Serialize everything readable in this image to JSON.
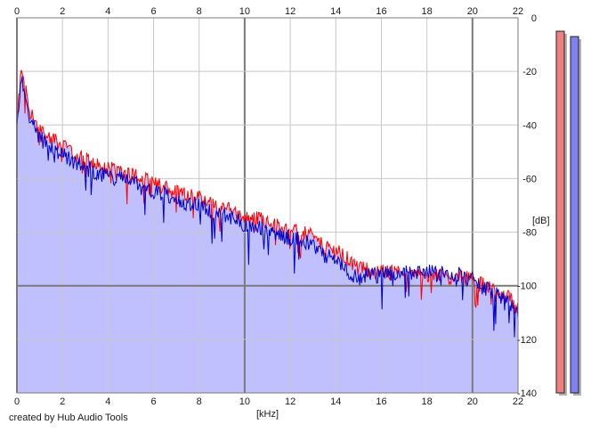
{
  "credit": "created by Hub Audio Tools",
  "colors": {
    "background": "#ffffff",
    "plot_background": "#ffffff",
    "grid_minor": "#c8c8c8",
    "grid_major": "#7a7a7a",
    "left_channel": "#ff0000",
    "right_channel": "#0000cc",
    "fill": "#c0c0ff",
    "meter_left": "#f08080",
    "meter_right": "#8080ee"
  },
  "chart_data": {
    "type": "area",
    "title": "",
    "xlabel": "[kHz]",
    "ylabel": "[dB]",
    "xlim": [
      0,
      22
    ],
    "ylim": [
      -140,
      0
    ],
    "x_ticks": [
      "0",
      "2",
      "4",
      "6",
      "8",
      "10",
      "12",
      "14",
      "16",
      "18",
      "20",
      "22"
    ],
    "y_ticks": [
      "0",
      "-20",
      "-40",
      "-60",
      "-80",
      "-100",
      "-120",
      "-140"
    ],
    "grid": true,
    "legend": "none",
    "x": [
      0,
      0.1,
      0.2,
      0.3,
      0.5,
      0.75,
      1,
      1.5,
      2,
      2.5,
      3,
      3.5,
      4,
      4.5,
      5,
      5.5,
      6,
      6.5,
      7,
      7.5,
      8,
      8.5,
      9,
      9.5,
      10,
      10.5,
      11,
      11.5,
      12,
      12.5,
      13,
      13.5,
      14,
      14.5,
      15,
      15.5,
      16,
      16.5,
      17,
      17.5,
      18,
      18.5,
      19,
      19.5,
      20,
      20.5,
      21,
      21.5,
      22
    ],
    "series": [
      {
        "values": [
          -40,
          -28,
          -19,
          -22,
          -33,
          -38,
          -42,
          -45,
          -48,
          -51,
          -53,
          -55,
          -56,
          -57,
          -58,
          -60,
          -62,
          -63,
          -65,
          -66,
          -67,
          -69,
          -70,
          -72,
          -74,
          -75,
          -76,
          -78,
          -79,
          -80,
          -82,
          -86,
          -87,
          -90,
          -94,
          -94,
          -95,
          -95,
          -95,
          -96,
          -96,
          -96,
          -97,
          -97,
          -98,
          -100,
          -102,
          -104,
          -108
        ]
      },
      {
        "values": [
          -43,
          -31,
          -23,
          -26,
          -36,
          -41,
          -45,
          -48,
          -51,
          -54,
          -56,
          -58,
          -59,
          -60,
          -61,
          -63,
          -65,
          -66,
          -68,
          -69,
          -70,
          -72,
          -73,
          -75,
          -77,
          -78,
          -79,
          -81,
          -82,
          -83,
          -85,
          -89,
          -90,
          -95,
          -97,
          -96,
          -96,
          -95,
          -95,
          -95,
          -95,
          -95,
          -95,
          -96,
          -98,
          -101,
          -103,
          -105,
          -110
        ]
      }
    ],
    "meters": [
      -5,
      -7
    ]
  }
}
